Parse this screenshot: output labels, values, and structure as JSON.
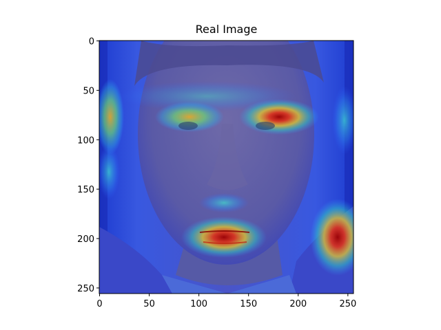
{
  "chart_data": {
    "type": "heatmap",
    "title": "Real Image",
    "xlabel": "",
    "ylabel": "",
    "xlim": [
      0,
      256
    ],
    "ylim": [
      256,
      0
    ],
    "xticks": [
      0,
      50,
      100,
      150,
      200,
      250
    ],
    "yticks": [
      0,
      50,
      100,
      150,
      200,
      250
    ],
    "grid": false,
    "content": "grayscale face photograph with jet-colormap attention heatmap overlay",
    "colormap": "jet",
    "hotspots": [
      {
        "region": "right eye",
        "x": 178,
        "y": 82,
        "level": 0.9
      },
      {
        "region": "left eye",
        "x": 90,
        "y": 82,
        "level": 0.55
      },
      {
        "region": "mouth",
        "x": 125,
        "y": 200,
        "level": 0.95
      },
      {
        "region": "right cheek background",
        "x": 238,
        "y": 198,
        "level": 1.0
      },
      {
        "region": "left edge background",
        "x": 10,
        "y": 80,
        "level": 0.55
      }
    ]
  }
}
